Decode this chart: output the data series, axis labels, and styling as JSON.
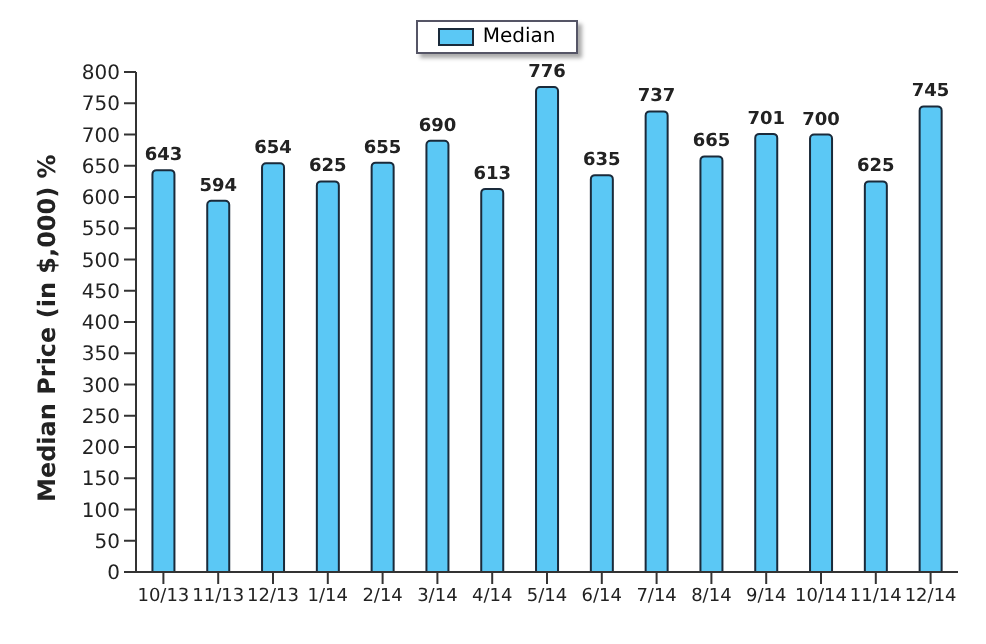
{
  "chart_data": {
    "type": "bar",
    "ylabel": "Median Price (in $,000) %",
    "categories": [
      "10/13",
      "11/13",
      "12/13",
      "1/14",
      "2/14",
      "3/14",
      "4/14",
      "5/14",
      "6/14",
      "7/14",
      "8/14",
      "9/14",
      "10/14",
      "11/14",
      "12/14"
    ],
    "series": [
      {
        "name": "Median",
        "color": "#5bc8f5",
        "values": [
          643,
          594,
          654,
          625,
          655,
          690,
          613,
          776,
          635,
          737,
          665,
          701,
          700,
          625,
          745
        ]
      }
    ],
    "ylim": [
      0,
      800
    ],
    "yticks": [
      0,
      50,
      100,
      150,
      200,
      250,
      300,
      350,
      400,
      450,
      500,
      550,
      600,
      650,
      700,
      750,
      800
    ],
    "data_labels": true,
    "legend": "top",
    "grid": false
  }
}
